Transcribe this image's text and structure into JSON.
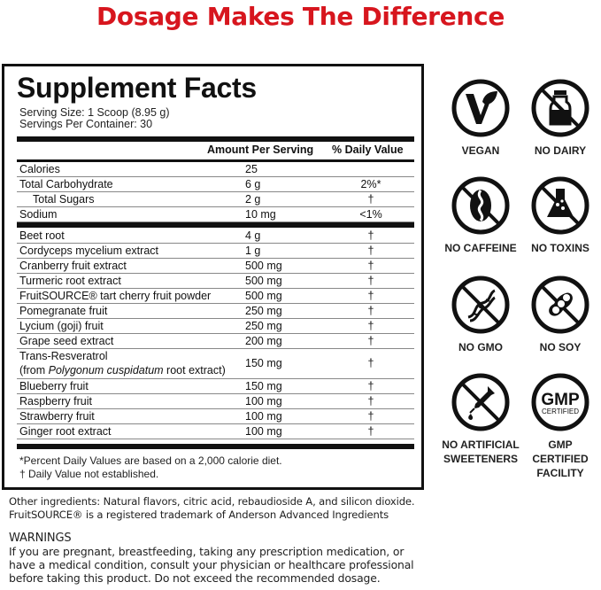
{
  "headline": "Dosage Makes The Difference",
  "facts": {
    "title": "Supplement Facts",
    "serving_size": "Serving Size: 1 Scoop (8.95 g)",
    "servings_per_container": "Servings Per Container: 30",
    "col_amount": "Amount Per Serving",
    "col_dv": "% Daily Value",
    "nutrients": [
      {
        "name": "Calories",
        "amount": "25",
        "dv": ""
      },
      {
        "name": "Total Carbohydrate",
        "amount": "6 g",
        "dv": "2%*"
      },
      {
        "name": "Total Sugars",
        "amount": "2 g",
        "dv": "†"
      },
      {
        "name": "Sodium",
        "amount": "10 mg",
        "dv": "<1%"
      }
    ],
    "ingredients": [
      {
        "name": "Beet root",
        "amount": "4 g",
        "dv": "†"
      },
      {
        "name": "Cordyceps mycelium extract",
        "amount": "1 g",
        "dv": "†"
      },
      {
        "name": "Cranberry fruit extract",
        "amount": "500 mg",
        "dv": "†"
      },
      {
        "name": "Turmeric root extract",
        "amount": "500 mg",
        "dv": "†"
      },
      {
        "name": "FruitSOURCE® tart cherry fruit powder",
        "amount": "500 mg",
        "dv": "†"
      },
      {
        "name": "Pomegranate fruit",
        "amount": "250 mg",
        "dv": "†"
      },
      {
        "name": "Lycium (goji) fruit",
        "amount": "250 mg",
        "dv": "†"
      },
      {
        "name": "Grape seed extract",
        "amount": "200 mg",
        "dv": "†"
      },
      {
        "name": "Trans-Resveratrol",
        "name2_prefix": "(from ",
        "name2_italic": "Polygonum cuspidatum",
        "name2_suffix": " root extract)",
        "amount": "150 mg",
        "dv": "†"
      },
      {
        "name": "Blueberry fruit",
        "amount": "150 mg",
        "dv": "†"
      },
      {
        "name": "Raspberry fruit",
        "amount": "100 mg",
        "dv": "†"
      },
      {
        "name": "Strawberry fruit",
        "amount": "100 mg",
        "dv": "†"
      },
      {
        "name": "Ginger root extract",
        "amount": "100 mg",
        "dv": "†"
      }
    ],
    "footnote1": "*Percent Daily Values are based on a 2,000 calorie diet.",
    "footnote2": "† Daily Value not established."
  },
  "other_ingredients": "Other ingredients: Natural flavors, citric acid, rebaudioside A, and silicon dioxide.",
  "trademark": "FruitSOURCE® is a registered trademark of Anderson Advanced Ingredients",
  "warnings_title": "WARNINGS",
  "warnings_text": "If you are pregnant, breastfeeding, taking any prescription medication, or have a medical condition, consult your physician or healthcare professional before taking this product. Do not exceed the recommended dosage.",
  "badges": [
    {
      "icon": "vegan-icon",
      "label": "VEGAN"
    },
    {
      "icon": "no-dairy-icon",
      "label": "NO DAIRY"
    },
    {
      "icon": "no-caffeine-icon",
      "label": "NO CAFFEINE"
    },
    {
      "icon": "no-toxins-icon",
      "label": "NO TOXINS"
    },
    {
      "icon": "no-gmo-icon",
      "label": "NO GMO"
    },
    {
      "icon": "no-soy-icon",
      "label": "NO SOY"
    },
    {
      "icon": "no-artificial-sweeteners-icon",
      "label": "NO ARTIFICIAL SWEETENERS"
    },
    {
      "icon": "gmp-certified-icon",
      "label": "GMP CERTIFIED FACILITY",
      "seal_big": "GMP",
      "seal_small": "CERTIFIED"
    }
  ],
  "colors": {
    "headline": "#d7161e",
    "text": "#111111"
  }
}
